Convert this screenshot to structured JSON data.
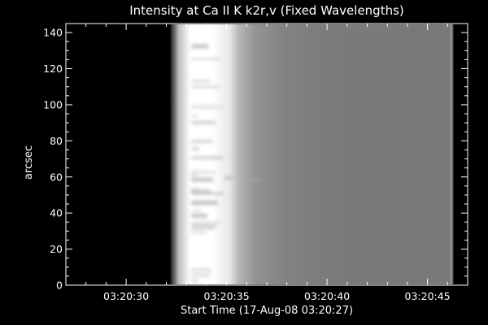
{
  "chart_data": {
    "type": "heatmap",
    "title": "Intensity at Ca II K k2r,v (Fixed Wavelengths)",
    "xlabel": "Start Time (17-Aug-08 03:20:27)",
    "ylabel": "arcsec",
    "x_axis": {
      "unit": "seconds since 03:20:27",
      "range": [
        0,
        20
      ],
      "ticks": [
        {
          "value": 3,
          "label": "03:20:30"
        },
        {
          "value": 8,
          "label": "03:20:35"
        },
        {
          "value": 13,
          "label": "03:20:40"
        },
        {
          "value": 18,
          "label": "03:20:45"
        }
      ]
    },
    "y_axis": {
      "range": [
        0,
        145
      ],
      "ticks": [
        0,
        20,
        40,
        60,
        80,
        100,
        120,
        140
      ]
    },
    "grid": false,
    "colormap": "grayscale",
    "colors": {
      "background": "#000000",
      "foreground": "#ffffff",
      "field": "#7a7a7a"
    },
    "image": {
      "x_start": 5.2,
      "x_end": 19.3,
      "bright_band": [
        5.2,
        6.4
      ],
      "fade_end": 7.5
    }
  }
}
